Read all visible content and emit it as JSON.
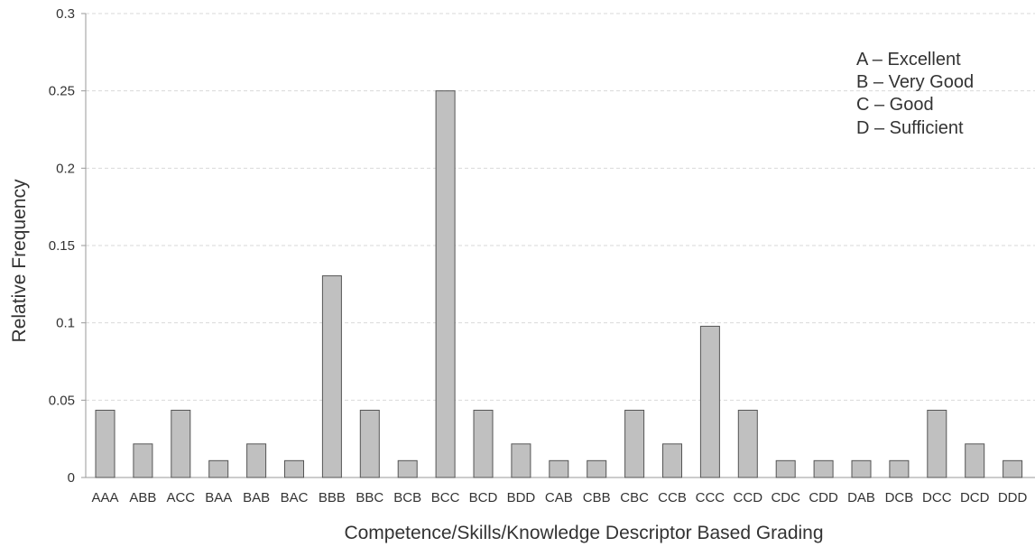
{
  "chart_data": {
    "type": "bar",
    "title": "",
    "xlabel": "Competence/Skills/Knowledge Descriptor Based Grading",
    "ylabel": "Relative Frequency",
    "ylim": [
      0,
      0.3
    ],
    "yticks": [
      "0",
      "0.05",
      "0.1",
      "0.15",
      "0.2",
      "0.25",
      "0.3"
    ],
    "grid": true,
    "categories": [
      "AAA",
      "ABB",
      "ACC",
      "BAA",
      "BAB",
      "BAC",
      "BBB",
      "BBC",
      "BCB",
      "BCC",
      "BCD",
      "BDD",
      "CAB",
      "CBB",
      "CBC",
      "CCB",
      "CCC",
      "CCD",
      "CDC",
      "CDD",
      "DAB",
      "DCB",
      "DCC",
      "DCD",
      "DDD"
    ],
    "values": [
      0.0435,
      0.0217,
      0.0435,
      0.0109,
      0.0217,
      0.0109,
      0.1304,
      0.0435,
      0.0109,
      0.25,
      0.0435,
      0.0217,
      0.0109,
      0.0109,
      0.0435,
      0.0217,
      0.0978,
      0.0435,
      0.0109,
      0.0109,
      0.0109,
      0.0109,
      0.0435,
      0.0217,
      0.0109
    ],
    "legend": {
      "placement": "top-right",
      "entries": [
        "A – Excellent",
        "B – Very Good",
        "C – Good",
        "D – Sufficient"
      ]
    },
    "colors": {
      "bar_fill": "#c0c0c0",
      "bar_stroke": "#555555"
    }
  }
}
